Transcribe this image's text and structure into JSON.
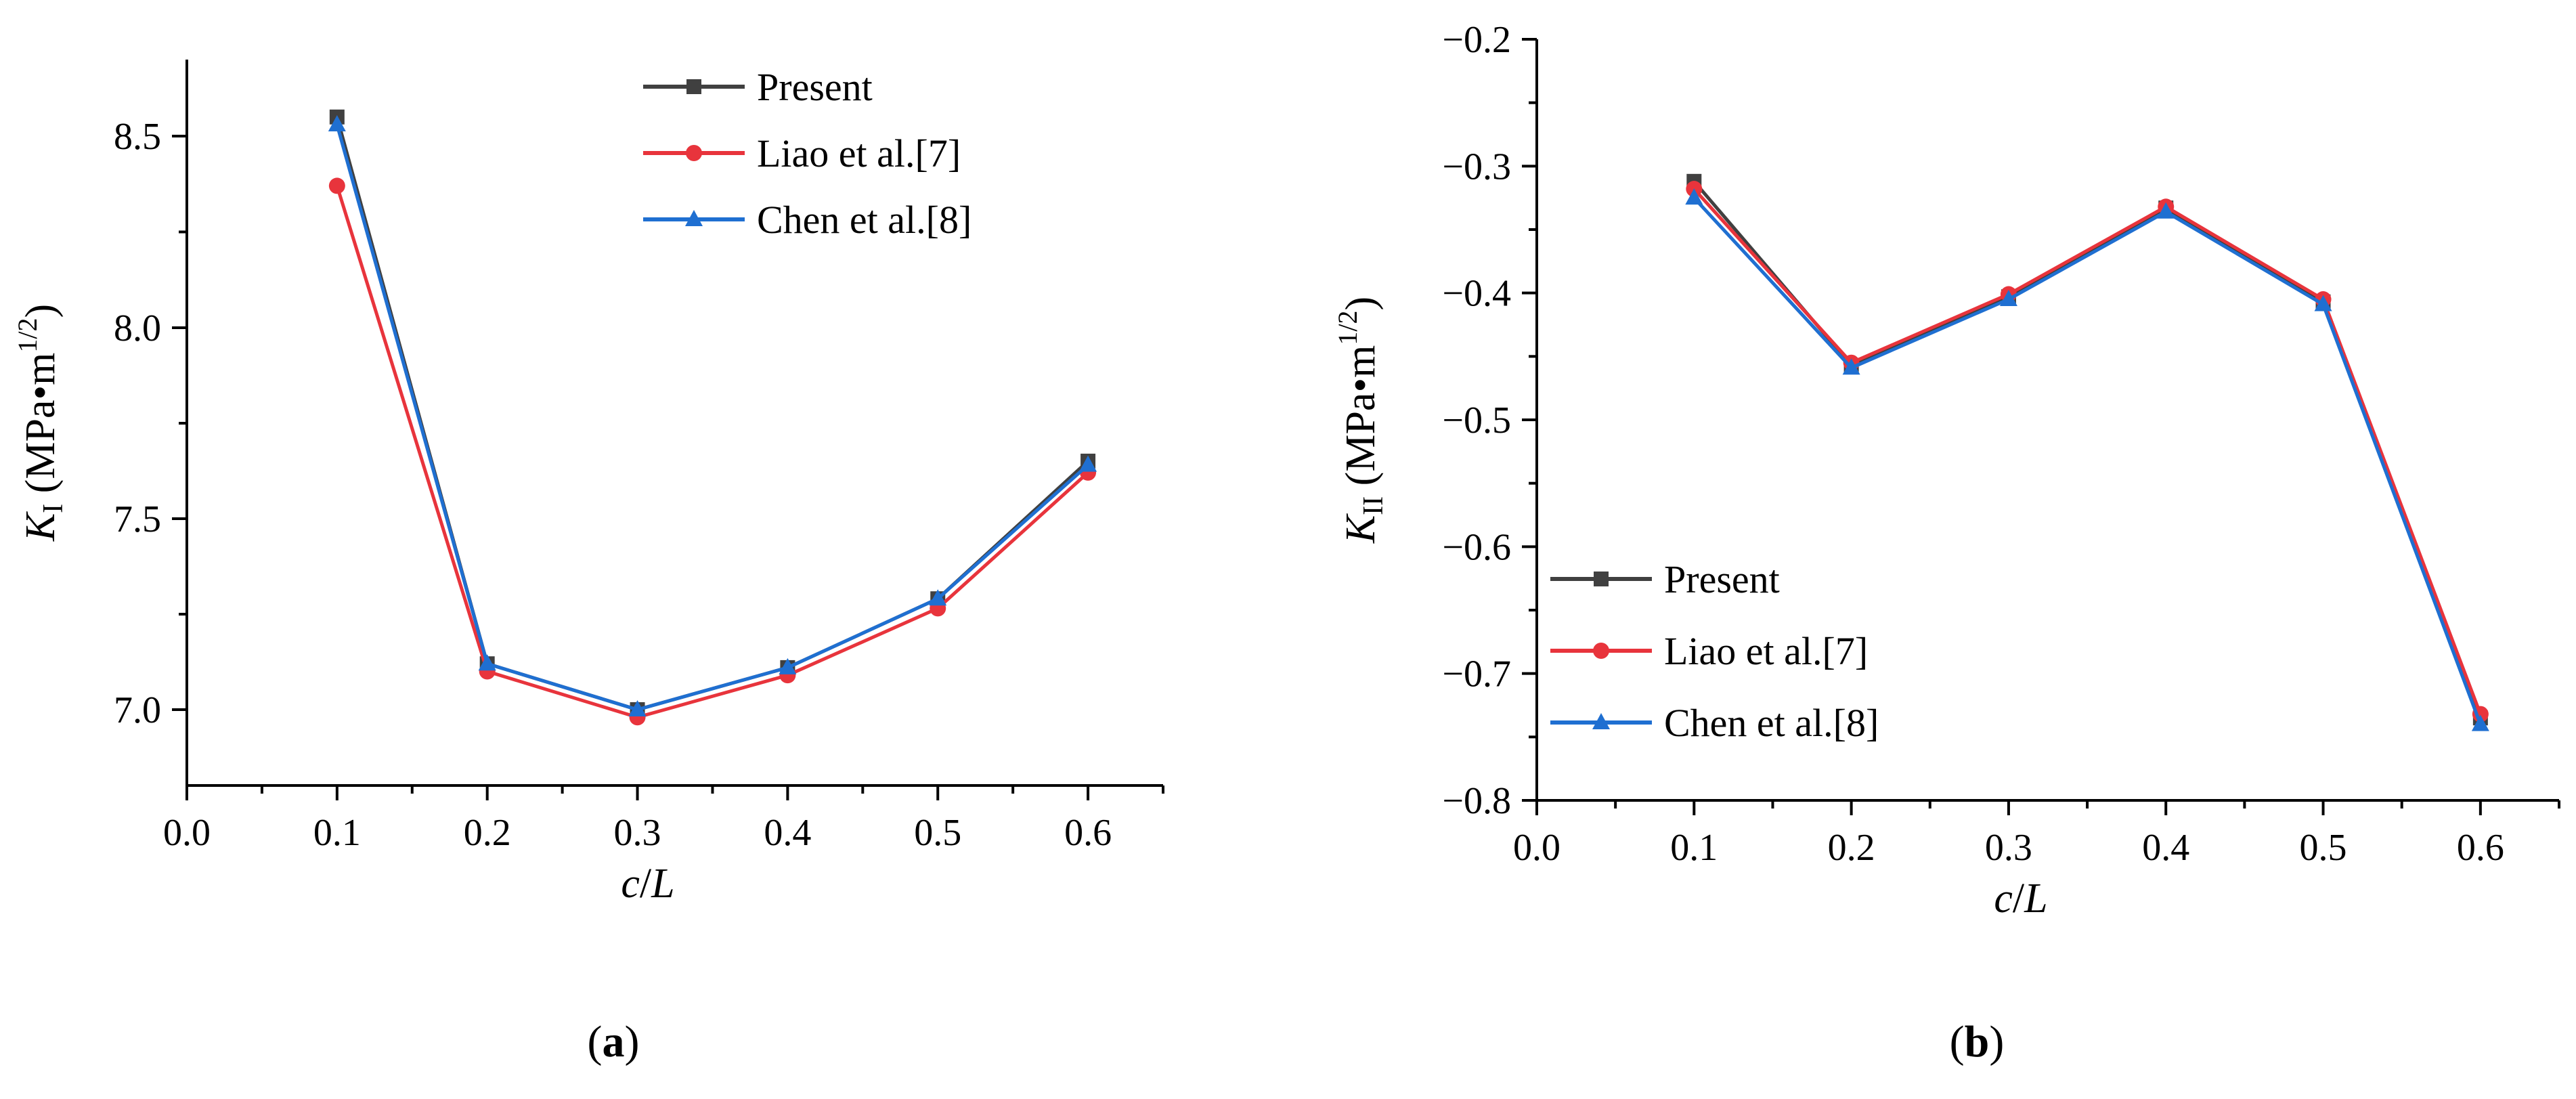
{
  "chart_data": [
    {
      "type": "line",
      "panel_label": {
        "open": "(",
        "letter": "a",
        "close": ")"
      },
      "xlabel": {
        "italic": "c",
        "rest": "/",
        "italic2": "L"
      },
      "ylabel": {
        "symbol": "K",
        "subscript": "I",
        "unit_open": " (MPa•m",
        "unit_sup": "1/2",
        "unit_close": ")"
      },
      "xlim": [
        0.0,
        0.65
      ],
      "ylim": [
        6.8,
        8.7
      ],
      "xticks": [
        "0.0",
        "0.1",
        "0.2",
        "0.3",
        "0.4",
        "0.5",
        "0.6"
      ],
      "yticks": [
        "7.0",
        "7.5",
        "8.0",
        "8.5"
      ],
      "legend_position": "top-right",
      "x": [
        0.1,
        0.2,
        0.3,
        0.4,
        0.5,
        0.6
      ],
      "series": [
        {
          "name": "Present",
          "color": "#404040",
          "marker": "square",
          "values": [
            8.55,
            7.12,
            7.0,
            7.11,
            7.29,
            7.65
          ]
        },
        {
          "name": "Liao et al.[7]",
          "color": "#e8343c",
          "marker": "circle",
          "values": [
            8.37,
            7.1,
            6.98,
            7.09,
            7.265,
            7.62
          ]
        },
        {
          "name": "Chen et al.[8]",
          "color": "#1f6fd1",
          "marker": "triangle",
          "values": [
            8.53,
            7.12,
            7.0,
            7.11,
            7.29,
            7.64
          ]
        }
      ]
    },
    {
      "type": "line",
      "panel_label": {
        "open": "(",
        "letter": "b",
        "close": ")"
      },
      "xlabel": {
        "italic": "c",
        "rest": "/",
        "italic2": "L"
      },
      "ylabel": {
        "symbol": "K",
        "subscript": "II",
        "unit_open": " (MPa•m",
        "unit_sup": "1/2",
        "unit_close": ")"
      },
      "xlim": [
        0.0,
        0.65
      ],
      "ylim": [
        -0.8,
        -0.2
      ],
      "xticks": [
        "0.0",
        "0.1",
        "0.2",
        "0.3",
        "0.4",
        "0.5",
        "0.6"
      ],
      "yticks": [
        "−0.8",
        "−0.7",
        "−0.6",
        "−0.5",
        "−0.4",
        "−0.3",
        "−0.2"
      ],
      "legend_position": "bottom-left",
      "x": [
        0.1,
        0.2,
        0.3,
        0.4,
        0.5,
        0.6
      ],
      "series": [
        {
          "name": "Present",
          "color": "#404040",
          "marker": "square",
          "values": [
            -0.312,
            -0.457,
            -0.403,
            -0.333,
            -0.407,
            -0.735
          ]
        },
        {
          "name": "Liao et al.[7]",
          "color": "#e8343c",
          "marker": "circle",
          "values": [
            -0.318,
            -0.455,
            -0.401,
            -0.332,
            -0.405,
            -0.732
          ]
        },
        {
          "name": "Chen et al.[8]",
          "color": "#1f6fd1",
          "marker": "triangle",
          "values": [
            -0.325,
            -0.459,
            -0.405,
            -0.336,
            -0.409,
            -0.74
          ]
        }
      ]
    }
  ]
}
